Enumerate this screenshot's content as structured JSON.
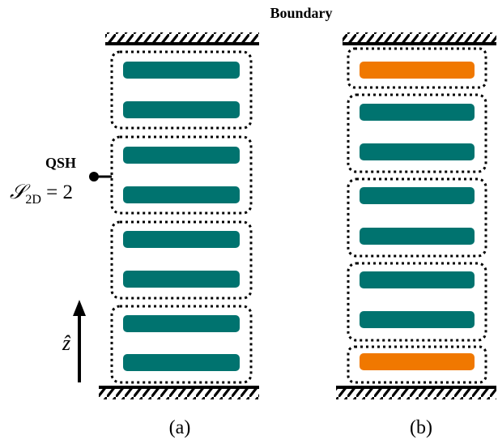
{
  "header": {
    "boundary_label": "Boundary"
  },
  "panel_a": {
    "caption": "(a)",
    "annotation": {
      "title": "QSH",
      "formula_symbol": "𝒮",
      "formula_subscript": "2D",
      "formula_rhs": " = 2"
    },
    "axis": {
      "label": "ẑ"
    },
    "cells": [
      {
        "layers": [
          "teal",
          "teal"
        ]
      },
      {
        "layers": [
          "teal",
          "teal"
        ]
      },
      {
        "layers": [
          "teal",
          "teal"
        ]
      },
      {
        "layers": [
          "teal",
          "teal"
        ]
      }
    ]
  },
  "panel_b": {
    "caption": "(b)",
    "cells": [
      {
        "layers": [
          "orange"
        ]
      },
      {
        "layers": [
          "teal",
          "teal"
        ]
      },
      {
        "layers": [
          "teal",
          "teal"
        ]
      },
      {
        "layers": [
          "teal",
          "teal"
        ]
      },
      {
        "layers": [
          "orange"
        ]
      }
    ]
  },
  "colors": {
    "teal": "#00736f",
    "orange": "#f07800",
    "ink": "#000000"
  }
}
